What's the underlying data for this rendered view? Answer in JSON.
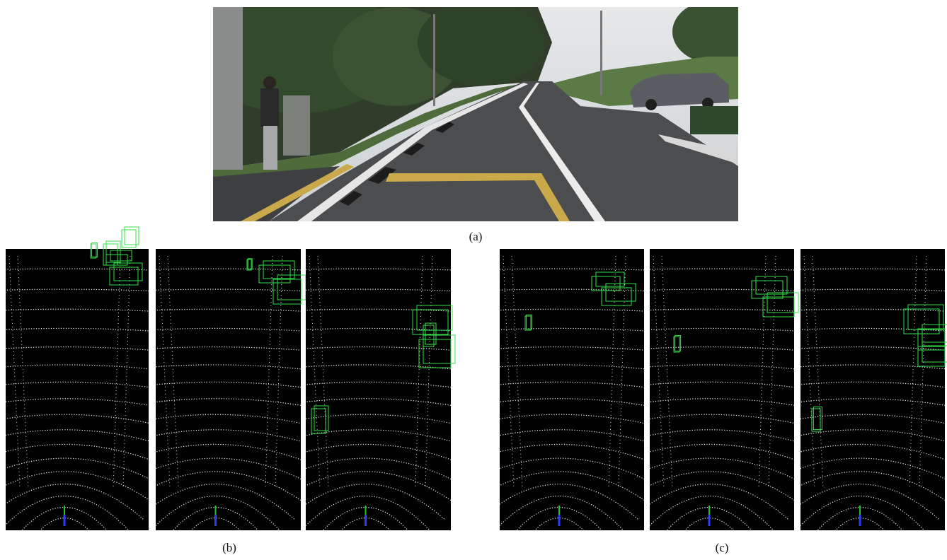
{
  "labels": {
    "a": "(a)",
    "b": "(b)",
    "c": "(c)"
  }
}
